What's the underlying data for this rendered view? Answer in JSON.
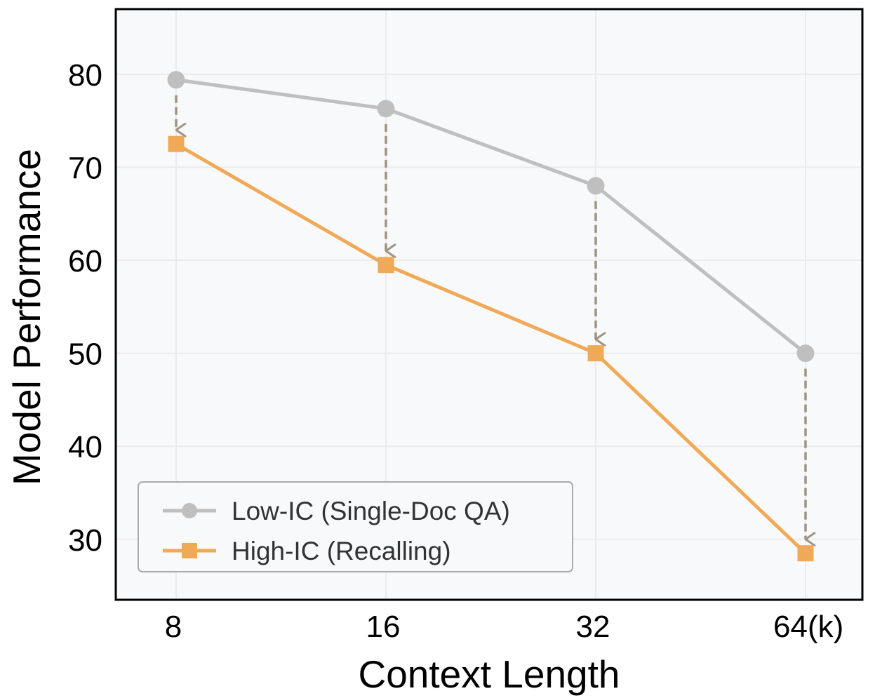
{
  "chart_data": {
    "type": "line",
    "title": "",
    "xlabel": "Context Length",
    "ylabel": "Model Performance",
    "categories": [
      "8",
      "16",
      "32",
      "64(k)"
    ],
    "yticks": [
      30,
      40,
      50,
      60,
      70,
      80
    ],
    "ylim": [
      23.5,
      87
    ],
    "grid": true,
    "legend_position": "bottom-left",
    "series": [
      {
        "name": "Low-IC (Single-Doc QA)",
        "color": "#bfbfbf",
        "marker": "circle",
        "values": [
          79.4,
          76.3,
          68.0,
          50.0
        ]
      },
      {
        "name": "High-IC (Recalling)",
        "color": "#f0a957",
        "marker": "square",
        "values": [
          72.5,
          59.5,
          50.0,
          28.5
        ]
      }
    ],
    "annotations": {
      "type": "dashed-down-arrows",
      "from_series": 0,
      "to_series": 1,
      "color": "#a09382"
    },
    "background_color": "#f8f9fb",
    "grid_color": "#ebebeb"
  }
}
